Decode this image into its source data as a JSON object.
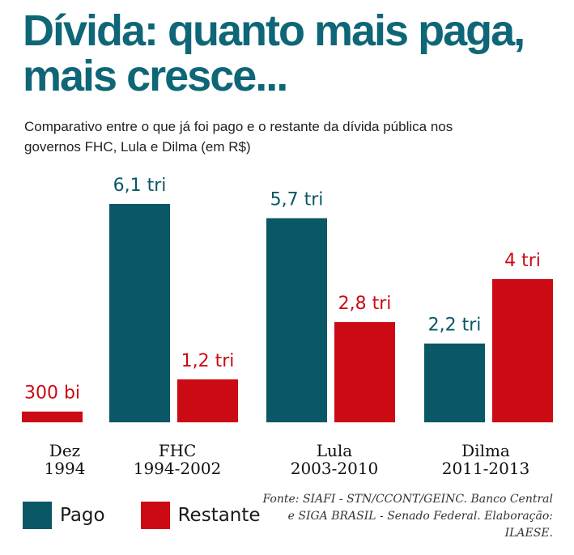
{
  "page": {
    "title": "Dívida: quanto mais paga, mais cresce...",
    "subtitle": "Comparativo entre o que já foi pago e o restante da dívida pública nos governos FHC, Lula e Dilma (em R$)",
    "source": "Fonte: SIAFI - STN/CCONT/GEINC. Banco Central e SIGA BRASIL - Senado Federal. Elaboração: ILAESE."
  },
  "legend": [
    {
      "label": "Pago",
      "color": "#0a5766"
    },
    {
      "label": "Restante",
      "color": "#cc0a14"
    }
  ],
  "chart_data": {
    "type": "bar",
    "unit": "trilhões de R$",
    "categories": [
      {
        "line1": "Dez",
        "line2": "1994"
      },
      {
        "line1": "FHC",
        "line2": "1994-2002"
      },
      {
        "line1": "Lula",
        "line2": "2003-2010"
      },
      {
        "line1": "Dilma",
        "line2": "2011-2013"
      }
    ],
    "series": [
      {
        "name": "Pago",
        "color": "#0a5766",
        "values": [
          null,
          6.1,
          5.7,
          2.2
        ],
        "labels": [
          null,
          "6,1 tri",
          "5,7 tri",
          "2,2 tri"
        ]
      },
      {
        "name": "Restante",
        "color": "#cc0a14",
        "values": [
          0.3,
          1.2,
          2.8,
          4.0
        ],
        "labels": [
          "300 bi",
          "1,2 tri",
          "2,8 tri",
          "4 tri"
        ]
      }
    ],
    "ylim": [
      0,
      6.1
    ],
    "grid": false,
    "legend_position": "bottom-left"
  }
}
